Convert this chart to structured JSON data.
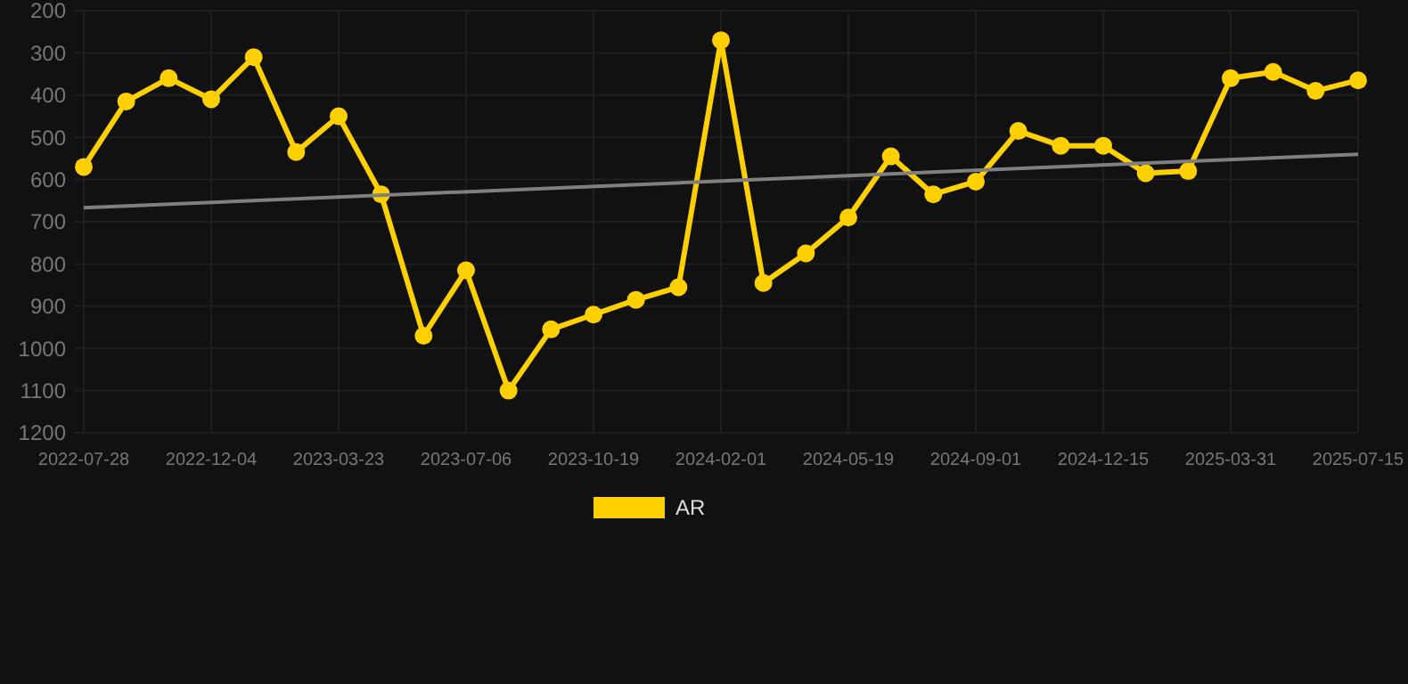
{
  "chart_data": {
    "type": "line",
    "categories": [
      "2022-07-28",
      null,
      null,
      "2022-12-04",
      null,
      null,
      "2023-03-23",
      null,
      null,
      "2023-07-06",
      null,
      null,
      "2023-10-19",
      null,
      null,
      "2024-02-01",
      null,
      null,
      "2024-05-19",
      null,
      null,
      "2024-09-01",
      null,
      null,
      "2024-12-15",
      null,
      null,
      "2025-03-31",
      null,
      null,
      "2025-07-15"
    ],
    "ylim": [
      1200,
      200
    ],
    "yticks": [
      200,
      300,
      400,
      500,
      600,
      700,
      800,
      900,
      1000,
      1100,
      1200
    ],
    "grid": true,
    "legend": "bottom",
    "marker": "circle",
    "line_style": "solid",
    "series": [
      {
        "name": "AR",
        "color": "#ffd000",
        "values": [
          570,
          415,
          360,
          410,
          310,
          535,
          450,
          635,
          970,
          815,
          1100,
          955,
          920,
          885,
          855,
          270,
          845,
          775,
          690,
          545,
          635,
          605,
          485,
          520,
          520,
          585,
          580,
          360,
          345,
          390,
          365
        ]
      },
      {
        "type": "line",
        "color": "#808080",
        "values": [
          667,
          null,
          null,
          null,
          null,
          null,
          null,
          null,
          null,
          null,
          null,
          null,
          null,
          null,
          null,
          null,
          null,
          null,
          null,
          null,
          null,
          null,
          null,
          null,
          null,
          null,
          null,
          null,
          null,
          null,
          540
        ],
        "marker": "none"
      }
    ]
  }
}
